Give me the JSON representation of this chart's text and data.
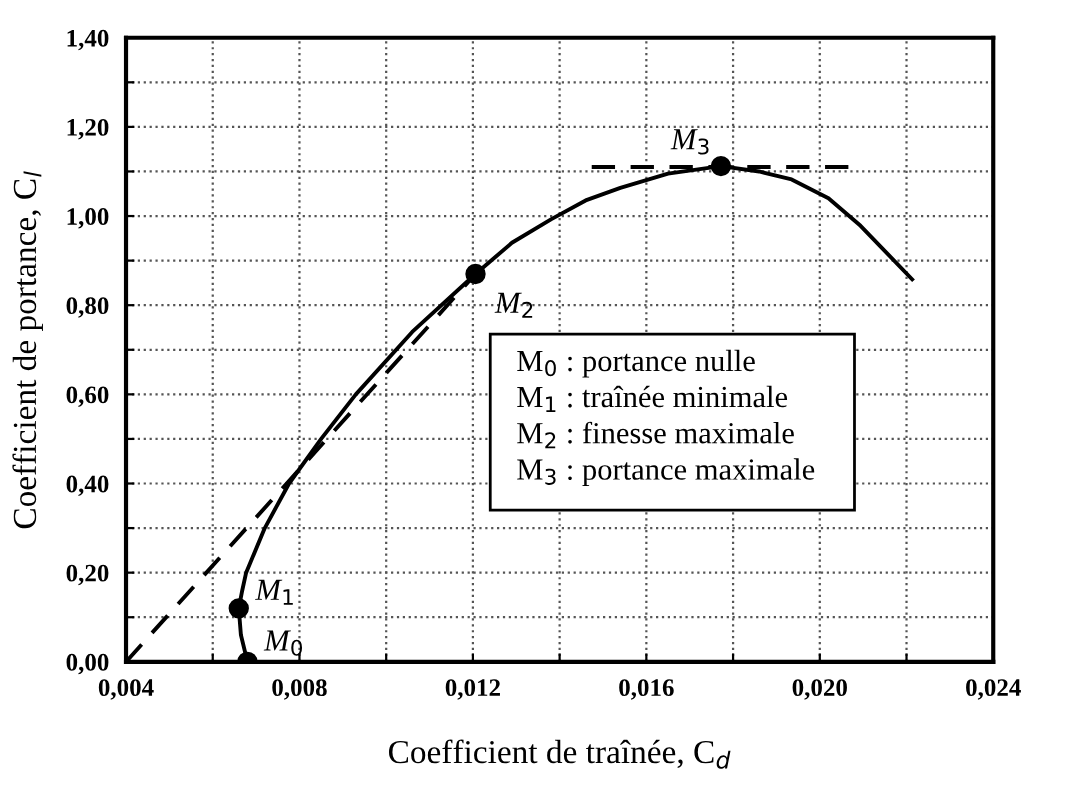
{
  "chart_data": {
    "type": "line",
    "xlabel": "Coefficient de traînée, C$_{d}$",
    "ylabel": "Coefficient de portance, C$_{l}$",
    "xlim": [
      0.004,
      0.024
    ],
    "ylim": [
      0,
      1.4
    ],
    "xticks": [
      {
        "value": 0.004,
        "label": "0,004"
      },
      {
        "value": 0.006,
        "label": null
      },
      {
        "value": 0.008,
        "label": "0,008"
      },
      {
        "value": 0.01,
        "label": null
      },
      {
        "value": 0.012,
        "label": "0,012"
      },
      {
        "value": 0.014,
        "label": null
      },
      {
        "value": 0.016,
        "label": "0,016"
      },
      {
        "value": 0.018,
        "label": null
      },
      {
        "value": 0.02,
        "label": "0,020"
      },
      {
        "value": 0.022,
        "label": null
      },
      {
        "value": 0.024,
        "label": "0,024"
      }
    ],
    "yticks": [
      {
        "value": 0,
        "label": "0,00"
      },
      {
        "value": 0.1,
        "label": null
      },
      {
        "value": 0.2,
        "label": "0,20"
      },
      {
        "value": 0.3,
        "label": null
      },
      {
        "value": 0.4,
        "label": "0,40"
      },
      {
        "value": 0.5,
        "label": null
      },
      {
        "value": 0.6,
        "label": "0,60"
      },
      {
        "value": 0.7,
        "label": null
      },
      {
        "value": 0.8,
        "label": "0,80"
      },
      {
        "value": 0.9,
        "label": null
      },
      {
        "value": 1.0,
        "label": "1,00"
      },
      {
        "value": 1.1,
        "label": null
      },
      {
        "value": 1.2,
        "label": "1,20"
      },
      {
        "value": 1.3,
        "label": null
      },
      {
        "value": 1.4,
        "label": "1,40"
      }
    ],
    "grid": true,
    "series": [
      {
        "color": "#000000",
        "line_style": "solid",
        "x": [
          0.0068,
          0.00665,
          0.0066,
          0.00668,
          0.00677,
          0.0072,
          0.00776,
          0.0085,
          0.0093,
          0.0106,
          0.01206,
          0.0129,
          0.01381,
          0.0146,
          0.0154,
          0.0165,
          0.01772,
          0.0186,
          0.01935,
          0.0202,
          0.02094,
          0.02213
        ],
        "values": [
          0.0,
          0.06,
          0.12,
          0.16,
          0.2,
          0.3,
          0.4,
          0.5,
          0.6,
          0.74,
          0.87,
          0.94,
          0.993,
          1.035,
          1.063,
          1.095,
          1.112,
          1.1,
          1.082,
          1.04,
          0.978,
          0.858
        ]
      },
      {
        "type": "line",
        "color": "#000000",
        "line_style": "dashed",
        "x": [
          0.004,
          0.01206
        ],
        "values": [
          0.0,
          0.87
        ]
      },
      {
        "type": "line",
        "color": "#000000",
        "line_style": "dashed",
        "x": [
          0.01474,
          0.0209
        ],
        "values": [
          1.11,
          1.11
        ]
      },
      {
        "type": "scatter",
        "color": "#000000",
        "marker": "circle",
        "x": [
          0.0068,
          0.0066,
          0.01206,
          0.01772
        ],
        "values": [
          0.0,
          0.12,
          0.87,
          1.112
        ]
      }
    ],
    "annotations": [
      {
        "text": "M$_{0}$",
        "x": 0.0068,
        "y": 0.0
      },
      {
        "text": "M$_{1}$",
        "x": 0.0066,
        "y": 0.12
      },
      {
        "text": "M$_{2}$",
        "x": 0.01206,
        "y": 0.87
      },
      {
        "text": "M$_{3}$",
        "x": 0.01772,
        "y": 1.112
      },
      "M$_{0}$ : portance nulle",
      "M$_{1}$ : traînée minimale",
      "M$_{2}$ : finesse maximale",
      "M$_{3}$ : portance maximale"
    ]
  }
}
